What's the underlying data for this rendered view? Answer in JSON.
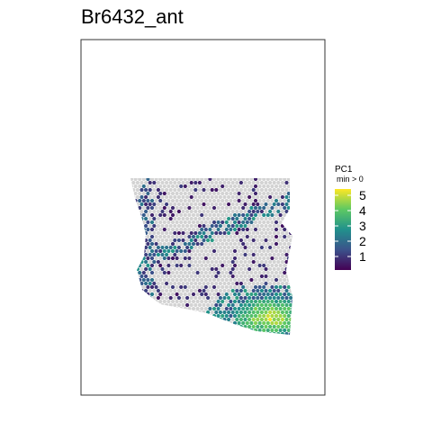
{
  "chart_data": {
    "type": "scatter",
    "title": "Br6432_ant",
    "legend": {
      "title": "PC1",
      "subtitle": "min >  0",
      "ticks": [
        "5",
        "4",
        "3",
        "2",
        "1"
      ],
      "placement": "right",
      "colorscale": [
        "#440154",
        "#3b528b",
        "#21918c",
        "#5ec962",
        "#fde725"
      ]
    },
    "background_spot_color": "#d3d3d3",
    "expression_range": [
      0,
      5.6
    ]
  }
}
